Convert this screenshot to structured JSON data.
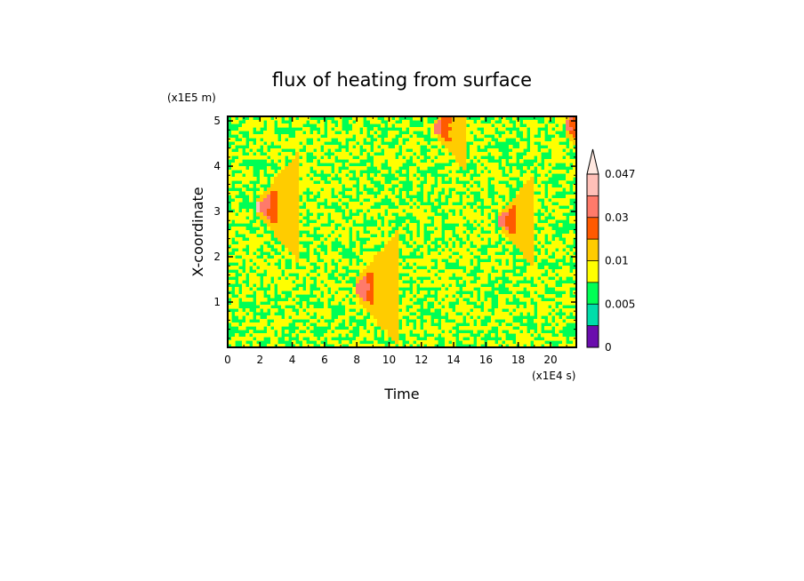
{
  "chart_data": {
    "type": "heatmap",
    "title": "flux of heating from surface",
    "xlabel": "Time",
    "ylabel": "X-coordinate",
    "x_unit": "(x1E4 s)",
    "y_unit": "(x1E5 m)",
    "xlim": [
      0,
      21.6
    ],
    "ylim": [
      0,
      5.1
    ],
    "x_ticks": [
      "0",
      "2",
      "4",
      "6",
      "8",
      "10",
      "12",
      "14",
      "16",
      "18",
      "20"
    ],
    "y_ticks": [
      "1",
      "2",
      "3",
      "4",
      "5"
    ],
    "colorbar": {
      "labels": [
        "0",
        "0.005",
        "0.01",
        "0.03",
        "0.047"
      ],
      "levels": [
        0,
        0.0025,
        0.005,
        0.0075,
        0.01,
        0.02,
        0.03,
        0.04,
        0.047
      ],
      "colors": [
        "#6a0dad",
        "#00ddaa",
        "#00ff55",
        "#ffff00",
        "#ffcc00",
        "#ff5a00",
        "#ff7a6a",
        "#ffc0b8",
        "#ffe8e0"
      ],
      "extend": "max"
    },
    "dominant_value": 0.0075,
    "warm_features": [
      {
        "time": 2.0,
        "x": 3.1,
        "spread": 2.4,
        "peak": 0.04
      },
      {
        "time": 8.0,
        "x": 1.3,
        "spread": 2.6,
        "peak": 0.04
      },
      {
        "time": 13.0,
        "x": 4.85,
        "spread": 1.8,
        "peak": 0.035
      },
      {
        "time": 17.0,
        "x": 2.8,
        "spread": 2.0,
        "peak": 0.035
      },
      {
        "time": 21.0,
        "x": 4.9,
        "spread": 1.6,
        "peak": 0.035
      }
    ]
  }
}
